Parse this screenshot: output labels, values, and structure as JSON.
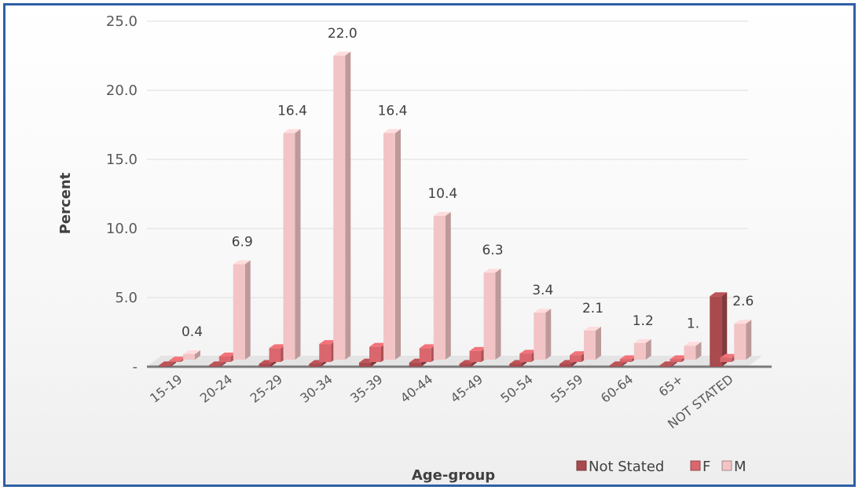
{
  "chart_data": {
    "type": "bar",
    "style": "3d-clustered-column",
    "xlabel": "Age-group",
    "ylabel": "Percent",
    "ylim": [
      0,
      25
    ],
    "y_ticks": [
      "-",
      "5.0",
      "10.0",
      "15.0",
      "20.0",
      "25.0"
    ],
    "grid": true,
    "legend_position": "bottom-right",
    "categories": [
      "15-19",
      "20-24",
      "25-29",
      "30-34",
      "35-39",
      "40-44",
      "45-49",
      "50-54",
      "55-59",
      "60-64",
      "65+",
      "NOT STATED"
    ],
    "series": [
      {
        "name": "Not Stated",
        "color": "#a94a4e",
        "values": [
          0.1,
          0.1,
          0.2,
          0.2,
          0.3,
          0.3,
          0.2,
          0.2,
          0.2,
          0.1,
          0.1,
          5.1
        ]
      },
      {
        "name": "F",
        "color": "#d9676d",
        "values": [
          0.1,
          0.4,
          1.0,
          1.3,
          1.1,
          1.0,
          0.8,
          0.6,
          0.5,
          0.2,
          0.2,
          0.3
        ]
      },
      {
        "name": "M",
        "color": "#f2c4c6",
        "values": [
          0.4,
          6.9,
          16.4,
          22.0,
          16.4,
          10.4,
          6.3,
          3.4,
          2.1,
          1.2,
          1.0,
          2.6
        ]
      }
    ],
    "data_labels": [
      "0.4",
      "6.9",
      "16.4",
      "22.0",
      "16.4",
      "10.4",
      "6.3",
      "3.4",
      "2.1",
      "1.2",
      "1.",
      "2.6"
    ]
  }
}
